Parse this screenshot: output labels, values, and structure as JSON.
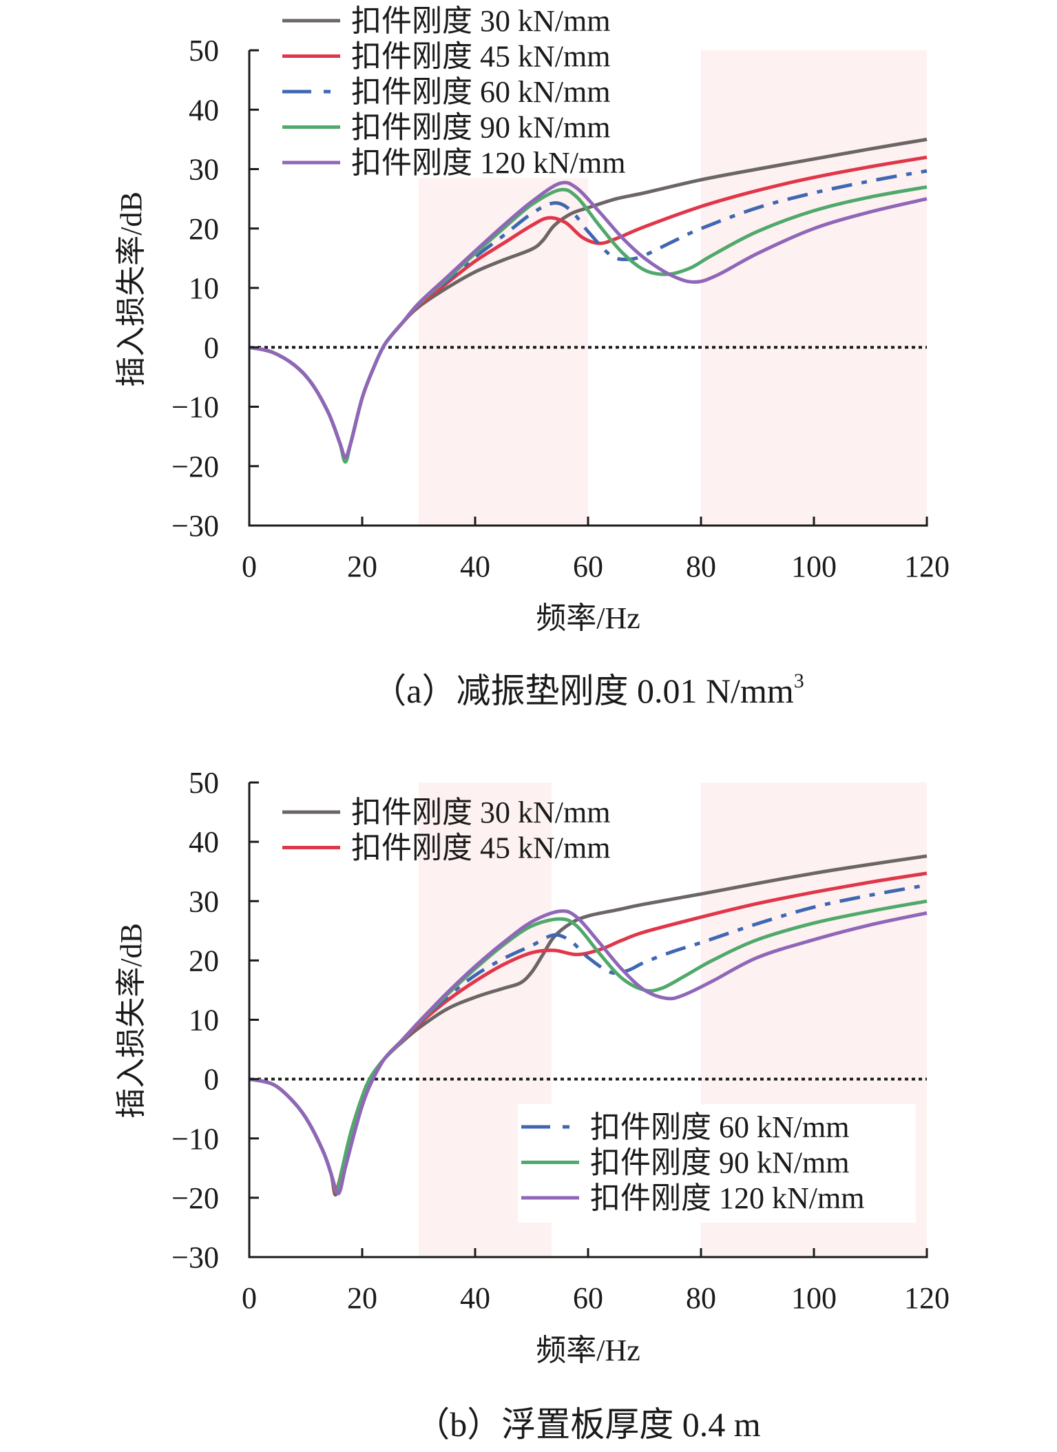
{
  "chart_data": [
    {
      "type": "line",
      "title": "",
      "caption": "（a）减振垫刚度 0.01 N/mm",
      "caption_superscript": "3",
      "xlabel": "频率/Hz",
      "ylabel": "插入损失率/dB",
      "xlim": [
        0,
        120
      ],
      "ylim": [
        -30,
        50
      ],
      "xticks": [
        0,
        20,
        40,
        60,
        80,
        100,
        120
      ],
      "yticks": [
        -30,
        -20,
        -10,
        0,
        10,
        20,
        30,
        40,
        50
      ],
      "xtick_labels": [
        "0",
        "20",
        "40",
        "60",
        "80",
        "100",
        "120"
      ],
      "ytick_labels": [
        "−30",
        "−20",
        "−10",
        "0",
        "10",
        "20",
        "30",
        "40",
        "50"
      ],
      "grid": false,
      "reference_line": {
        "y": 0,
        "style": "dotted",
        "color": "#1a1a1a"
      },
      "shaded_bands": [
        {
          "x": [
            30,
            60
          ],
          "y": [
            -30,
            28.5
          ],
          "color": "#fdf1f1"
        },
        {
          "x": [
            80,
            120
          ],
          "y": [
            -30,
            50
          ],
          "color": "#fdf1f1"
        }
      ],
      "legend": {
        "placement": "top-left",
        "groups": [
          [
            0,
            1,
            2,
            3,
            4
          ]
        ]
      },
      "series": [
        {
          "name": "扣件刚度 30 kN/mm",
          "color": "#6b6566",
          "dash": "solid",
          "x": [
            0,
            4,
            8,
            11,
            14,
            16,
            17,
            18,
            20,
            22,
            24,
            27,
            30,
            35,
            40,
            45,
            50,
            52,
            54,
            57,
            60,
            65,
            70,
            80,
            90,
            100,
            110,
            120
          ],
          "y": [
            0,
            -0.8,
            -3,
            -6,
            -11,
            -16,
            -18.5,
            -16,
            -8.5,
            -3.5,
            0.5,
            4,
            6.8,
            10,
            12.7,
            14.7,
            16.5,
            18,
            20.5,
            22.5,
            23.5,
            25,
            26,
            28.2,
            30,
            31.7,
            33.4,
            35
          ]
        },
        {
          "name": "扣件刚度 45 kN/mm",
          "color": "#e0364a",
          "dash": "solid",
          "x": [
            0,
            4,
            8,
            11,
            14,
            16,
            17,
            18,
            20,
            22,
            24,
            27,
            30,
            35,
            40,
            45,
            50,
            53,
            56,
            59,
            62,
            65,
            70,
            80,
            90,
            100,
            110,
            120
          ],
          "y": [
            0,
            -0.8,
            -3,
            -6,
            -11,
            -16,
            -18.7,
            -16,
            -8.5,
            -3.5,
            0.5,
            4,
            7,
            10.8,
            14.5,
            17.5,
            20.5,
            21.8,
            21,
            18.5,
            17.5,
            18.3,
            20.3,
            23.7,
            26.4,
            28.6,
            30.4,
            32
          ]
        },
        {
          "name": "扣件刚度 60 kN/mm",
          "color": "#3f67b1",
          "dash": "dashdot",
          "x": [
            0,
            4,
            8,
            11,
            14,
            16,
            17,
            18,
            20,
            22,
            24,
            27,
            30,
            35,
            40,
            45,
            50,
            54,
            57,
            60,
            64,
            67,
            70,
            75,
            80,
            90,
            100,
            110,
            120
          ],
          "y": [
            0,
            -0.8,
            -3,
            -6,
            -11,
            -16,
            -19,
            -16,
            -8.5,
            -3.5,
            0.5,
            4,
            7.2,
            11.2,
            15.2,
            18.8,
            22.5,
            24.3,
            23,
            19.5,
            15.5,
            14.8,
            15.5,
            17.8,
            20,
            23.5,
            26,
            28,
            29.7
          ]
        },
        {
          "name": "扣件刚度 90 kN/mm",
          "color": "#4fa96a",
          "dash": "solid",
          "x": [
            0,
            4,
            8,
            11,
            14,
            16,
            17,
            18,
            20,
            22,
            24,
            27,
            30,
            35,
            40,
            45,
            50,
            55,
            58,
            62,
            66,
            70,
            74,
            78,
            82,
            90,
            100,
            110,
            120
          ],
          "y": [
            0,
            -0.8,
            -3,
            -6,
            -11,
            -16,
            -19.3,
            -16,
            -8.5,
            -3.5,
            0.5,
            4,
            7.3,
            11.5,
            15.8,
            20,
            24,
            26.5,
            25.3,
            20.5,
            16,
            13,
            12.3,
            13.3,
            15.5,
            19.5,
            23,
            25.3,
            27
          ]
        },
        {
          "name": "扣件刚度 120 kN/mm",
          "color": "#8f66b8",
          "dash": "solid",
          "x": [
            0,
            4,
            8,
            11,
            14,
            16,
            17,
            18,
            20,
            22,
            24,
            27,
            30,
            35,
            40,
            45,
            50,
            55,
            58,
            62,
            66,
            70,
            75,
            79,
            83,
            90,
            100,
            110,
            120
          ],
          "y": [
            0,
            -0.8,
            -3,
            -6,
            -11,
            -16,
            -18.5,
            -16,
            -8.5,
            -3.5,
            0.5,
            4,
            7.4,
            11.8,
            16.2,
            20.5,
            24.5,
            27.6,
            26.8,
            22.8,
            18.5,
            15,
            12,
            11,
            12.2,
            15.8,
            20,
            22.8,
            25
          ]
        }
      ]
    },
    {
      "type": "line",
      "title": "",
      "caption": "（b）浮置板厚度 0.4 m",
      "caption_superscript": "",
      "xlabel": "频率/Hz",
      "ylabel": "插入损失率/dB",
      "xlim": [
        0,
        120
      ],
      "ylim": [
        -30,
        50
      ],
      "xticks": [
        0,
        20,
        40,
        60,
        80,
        100,
        120
      ],
      "yticks": [
        -30,
        -20,
        -10,
        0,
        10,
        20,
        30,
        40,
        50
      ],
      "xtick_labels": [
        "0",
        "20",
        "40",
        "60",
        "80",
        "100",
        "120"
      ],
      "ytick_labels": [
        "−30",
        "−20",
        "−10",
        "0",
        "10",
        "20",
        "30",
        "40",
        "50"
      ],
      "grid": false,
      "reference_line": {
        "y": 0,
        "style": "dotted",
        "color": "#1a1a1a"
      },
      "shaded_bands": [
        {
          "x": [
            30,
            53.5
          ],
          "y": [
            -30,
            50
          ],
          "color": "#fdf1f1"
        },
        {
          "x": [
            80,
            120
          ],
          "y": [
            -30,
            50
          ],
          "color": "#fdf1f1"
        }
      ],
      "legend": {
        "placement": "top-left and lower-right",
        "groups": [
          [
            0,
            1
          ],
          [
            2,
            3,
            4
          ]
        ]
      },
      "series": [
        {
          "name": "扣件刚度 30 kN/mm",
          "color": "#6b6566",
          "dash": "solid",
          "x": [
            0,
            4,
            7,
            10,
            13,
            14.5,
            15.3,
            16.5,
            18,
            20,
            21.5,
            24,
            27,
            30,
            35,
            40,
            45,
            48,
            50,
            52,
            54,
            57,
            60,
            65,
            70,
            80,
            90,
            100,
            110,
            120
          ],
          "y": [
            0,
            -0.8,
            -3,
            -6.5,
            -12,
            -16,
            -19.5,
            -15,
            -9,
            -3,
            0.3,
            3.5,
            6.2,
            8.6,
            11.8,
            13.8,
            15.3,
            16.2,
            18,
            21,
            24,
            26.3,
            27.5,
            28.5,
            29.5,
            31.2,
            33,
            34.7,
            36.2,
            37.6
          ]
        },
        {
          "name": "扣件刚度 45 kN/mm",
          "color": "#e0364a",
          "dash": "solid",
          "x": [
            0,
            4,
            7,
            10,
            13,
            14.5,
            15.3,
            16.5,
            18,
            20,
            21.5,
            24,
            27,
            30,
            35,
            40,
            45,
            50,
            54,
            58,
            62,
            66,
            70,
            80,
            90,
            100,
            110,
            120
          ],
          "y": [
            0,
            -0.8,
            -3,
            -6.5,
            -12,
            -16,
            -19,
            -15,
            -9,
            -3,
            0.3,
            3.5,
            6.3,
            9.2,
            13.2,
            16.5,
            19.3,
            21.3,
            21.7,
            21,
            21.8,
            23.4,
            24.8,
            27.3,
            29.6,
            31.5,
            33.2,
            34.7
          ]
        },
        {
          "name": "扣件刚度 60 kN/mm",
          "color": "#3f67b1",
          "dash": "dashdot",
          "x": [
            0,
            4,
            7,
            10,
            13,
            14.5,
            15.5,
            16.5,
            18,
            20,
            21.5,
            24,
            27,
            30,
            35,
            40,
            45,
            50,
            54,
            57,
            60,
            64,
            67,
            70,
            75,
            80,
            90,
            100,
            110,
            120
          ],
          "y": [
            0,
            -0.8,
            -3,
            -6.5,
            -12,
            -16,
            -19,
            -15,
            -9,
            -3,
            0.3,
            3.5,
            6.4,
            9.4,
            13.8,
            17.5,
            20.3,
            22.5,
            24.3,
            23.2,
            20.5,
            18,
            18.3,
            19.7,
            21.5,
            23,
            26.2,
            29,
            31,
            32.7
          ]
        },
        {
          "name": "扣件刚度 90 kN/mm",
          "color": "#4fa96a",
          "dash": "solid",
          "x": [
            0,
            4,
            7,
            10,
            13,
            14.5,
            15.5,
            16.5,
            18,
            20,
            21.5,
            24,
            27,
            30,
            35,
            40,
            45,
            50,
            55,
            58,
            62,
            66,
            70,
            73,
            77,
            82,
            90,
            100,
            110,
            120
          ],
          "y": [
            0,
            -0.8,
            -3,
            -6.5,
            -12,
            -16,
            -19,
            -15,
            -9,
            -3,
            0.3,
            3.5,
            6.4,
            9.5,
            14.2,
            18.6,
            22.6,
            25.8,
            27,
            25.8,
            21.2,
            17,
            15,
            15.3,
            17.3,
            20,
            23.5,
            26.3,
            28.3,
            30
          ]
        },
        {
          "name": "扣件刚度 120 kN/mm",
          "color": "#8f66b8",
          "dash": "solid",
          "x": [
            0,
            4,
            7,
            10,
            13,
            14.5,
            15.8,
            17,
            18.5,
            20,
            21.5,
            24,
            27,
            30,
            35,
            40,
            45,
            50,
            55,
            58,
            62,
            66,
            70,
            74,
            77,
            82,
            90,
            100,
            110,
            120
          ],
          "y": [
            0,
            -0.8,
            -3,
            -6.5,
            -12,
            -16,
            -19.3,
            -15,
            -9.5,
            -4.5,
            -0.8,
            3.5,
            6.5,
            9.6,
            14.5,
            19,
            23,
            26.5,
            28.3,
            27.3,
            23,
            18.5,
            15,
            13.6,
            14.2,
            16.5,
            20.5,
            23.5,
            26,
            28
          ]
        }
      ]
    }
  ]
}
